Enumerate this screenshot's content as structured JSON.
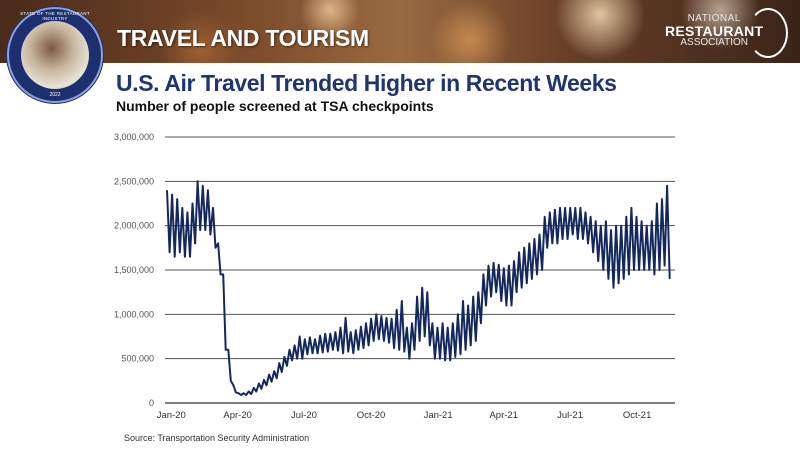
{
  "header": {
    "section": "TRAVEL AND TOURISM",
    "logo": {
      "line1": "NATIONAL",
      "line2": "RESTAURANT",
      "line3": "ASSOCIATION"
    },
    "badge": {
      "text": "STATE OF THE RESTAURANT INDUSTRY",
      "year": "2022"
    }
  },
  "colors": {
    "line": "#15285e",
    "title": "#1f3470",
    "grid": "#444444"
  },
  "chart_data": {
    "type": "line",
    "title": "U.S. Air Travel Trended Higher in Recent Weeks",
    "subtitle": "Number of people screened at TSA checkpoints",
    "source": "Source: Transportation Security Administration",
    "ylim": [
      0,
      3000000
    ],
    "yticks": [
      0,
      500000,
      1000000,
      1500000,
      2000000,
      2500000,
      3000000
    ],
    "ytick_labels": [
      "0",
      "500,000",
      "1,000,000",
      "1,500,000",
      "2,000,000",
      "2,500,000",
      "3,000,000"
    ],
    "xtick_labels": [
      "Jan-20",
      "Apr-20",
      "Jul-20",
      "Oct-20",
      "Jan-21",
      "Apr-21",
      "Jul-21",
      "Oct-21"
    ],
    "xtick_days": [
      0,
      91,
      182,
      274,
      366,
      456,
      547,
      639
    ],
    "grid": true,
    "series_note": "weekly low/high of daily screenings, thousands, weeks from 2020-01-01",
    "weekly_low_high": [
      [
        1700,
        2400
      ],
      [
        1650,
        2350
      ],
      [
        1700,
        2300
      ],
      [
        1650,
        2200
      ],
      [
        1650,
        2150
      ],
      [
        1800,
        2250
      ],
      [
        1950,
        2500
      ],
      [
        1950,
        2450
      ],
      [
        1900,
        2400
      ],
      [
        1750,
        2200
      ],
      [
        1450,
        1800
      ],
      [
        600,
        1450
      ],
      [
        250,
        600
      ],
      [
        120,
        200
      ],
      [
        90,
        110
      ],
      [
        90,
        110
      ],
      [
        100,
        130
      ],
      [
        130,
        170
      ],
      [
        160,
        220
      ],
      [
        200,
        260
      ],
      [
        240,
        320
      ],
      [
        280,
        360
      ],
      [
        350,
        450
      ],
      [
        420,
        520
      ],
      [
        480,
        600
      ],
      [
        500,
        650
      ],
      [
        500,
        750
      ],
      [
        550,
        720
      ],
      [
        560,
        740
      ],
      [
        560,
        720
      ],
      [
        570,
        760
      ],
      [
        580,
        780
      ],
      [
        600,
        780
      ],
      [
        590,
        800
      ],
      [
        560,
        850
      ],
      [
        580,
        960
      ],
      [
        560,
        800
      ],
      [
        600,
        820
      ],
      [
        620,
        860
      ],
      [
        650,
        900
      ],
      [
        700,
        950
      ],
      [
        720,
        1000
      ],
      [
        700,
        980
      ],
      [
        680,
        960
      ],
      [
        620,
        950
      ],
      [
        600,
        1050
      ],
      [
        580,
        1150
      ],
      [
        500,
        850
      ],
      [
        600,
        900
      ],
      [
        700,
        1200
      ],
      [
        750,
        1300
      ],
      [
        650,
        1250
      ],
      [
        500,
        900
      ],
      [
        500,
        850
      ],
      [
        480,
        900
      ],
      [
        480,
        850
      ],
      [
        520,
        900
      ],
      [
        550,
        1000
      ],
      [
        600,
        1150
      ],
      [
        650,
        1100
      ],
      [
        700,
        1200
      ],
      [
        900,
        1250
      ],
      [
        1100,
        1450
      ],
      [
        1200,
        1550
      ],
      [
        1250,
        1580
      ],
      [
        1150,
        1560
      ],
      [
        1100,
        1520
      ],
      [
        1100,
        1550
      ],
      [
        1250,
        1600
      ],
      [
        1300,
        1700
      ],
      [
        1350,
        1750
      ],
      [
        1400,
        1800
      ],
      [
        1450,
        1850
      ],
      [
        1500,
        1900
      ],
      [
        1750,
        2100
      ],
      [
        1800,
        2150
      ],
      [
        1800,
        2180
      ],
      [
        1850,
        2200
      ],
      [
        1850,
        2200
      ],
      [
        1900,
        2200
      ],
      [
        1850,
        2200
      ],
      [
        1850,
        2200
      ],
      [
        1800,
        2150
      ],
      [
        1700,
        2100
      ],
      [
        1600,
        2050
      ],
      [
        1500,
        2000
      ],
      [
        1400,
        2050
      ],
      [
        1300,
        1950
      ],
      [
        1350,
        2000
      ],
      [
        1400,
        2000
      ],
      [
        1450,
        2100
      ],
      [
        1500,
        2200
      ],
      [
        1500,
        2100
      ],
      [
        1500,
        2050
      ],
      [
        1500,
        2000
      ],
      [
        1450,
        2050
      ],
      [
        1500,
        2250
      ],
      [
        1550,
        2300
      ],
      [
        1400,
        2450
      ]
    ]
  }
}
